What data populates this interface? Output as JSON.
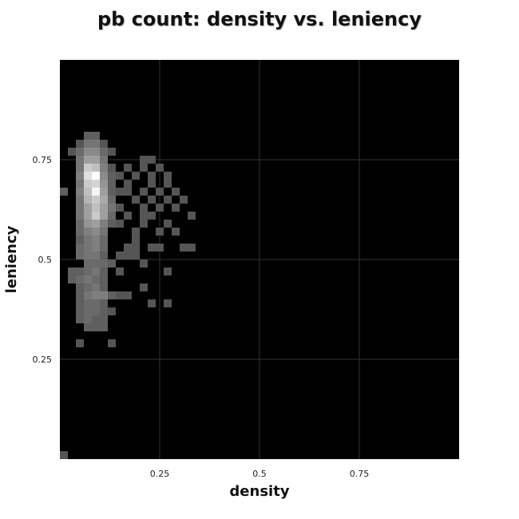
{
  "chart_data": {
    "type": "heatmap",
    "title": "pb count: density vs. leniency",
    "xlabel": "density",
    "ylabel": "leniency",
    "xlim": [
      0,
      1
    ],
    "ylim": [
      0,
      1
    ],
    "bin_size": 0.02,
    "x_ticks": [
      {
        "value": 0.25,
        "label": "0.25"
      },
      {
        "value": 0.5,
        "label": "0.5"
      },
      {
        "value": 0.75,
        "label": "0.75"
      }
    ],
    "y_ticks": [
      {
        "value": 0.25,
        "label": "0.25"
      },
      {
        "value": 0.5,
        "label": "0.5"
      },
      {
        "value": 0.75,
        "label": "0.75"
      }
    ],
    "grid": true,
    "legend": "none",
    "colors": {
      "background": "#000000",
      "low": "#2a2a2a",
      "high": "#ffffff",
      "grid": "#333333"
    },
    "cells": [
      {
        "x": 0.06,
        "y": 0.8,
        "v": 0.25
      },
      {
        "x": 0.08,
        "y": 0.8,
        "v": 0.25
      },
      {
        "x": 0.04,
        "y": 0.78,
        "v": 0.2
      },
      {
        "x": 0.06,
        "y": 0.78,
        "v": 0.35
      },
      {
        "x": 0.08,
        "y": 0.78,
        "v": 0.35
      },
      {
        "x": 0.1,
        "y": 0.78,
        "v": 0.2
      },
      {
        "x": 0.02,
        "y": 0.76,
        "v": 0.2
      },
      {
        "x": 0.04,
        "y": 0.76,
        "v": 0.3
      },
      {
        "x": 0.06,
        "y": 0.76,
        "v": 0.45
      },
      {
        "x": 0.08,
        "y": 0.76,
        "v": 0.45
      },
      {
        "x": 0.1,
        "y": 0.76,
        "v": 0.3
      },
      {
        "x": 0.12,
        "y": 0.76,
        "v": 0.2
      },
      {
        "x": 0.04,
        "y": 0.74,
        "v": 0.35
      },
      {
        "x": 0.06,
        "y": 0.74,
        "v": 0.55
      },
      {
        "x": 0.08,
        "y": 0.74,
        "v": 0.55
      },
      {
        "x": 0.1,
        "y": 0.74,
        "v": 0.35
      },
      {
        "x": 0.2,
        "y": 0.74,
        "v": 0.2
      },
      {
        "x": 0.22,
        "y": 0.74,
        "v": 0.2
      },
      {
        "x": 0.04,
        "y": 0.72,
        "v": 0.35
      },
      {
        "x": 0.06,
        "y": 0.72,
        "v": 0.75
      },
      {
        "x": 0.08,
        "y": 0.72,
        "v": 0.7
      },
      {
        "x": 0.1,
        "y": 0.72,
        "v": 0.4
      },
      {
        "x": 0.12,
        "y": 0.72,
        "v": 0.2
      },
      {
        "x": 0.16,
        "y": 0.72,
        "v": 0.2
      },
      {
        "x": 0.2,
        "y": 0.72,
        "v": 0.2
      },
      {
        "x": 0.24,
        "y": 0.72,
        "v": 0.2
      },
      {
        "x": 0.04,
        "y": 0.7,
        "v": 0.4
      },
      {
        "x": 0.06,
        "y": 0.7,
        "v": 0.85
      },
      {
        "x": 0.08,
        "y": 0.7,
        "v": 1.0
      },
      {
        "x": 0.1,
        "y": 0.7,
        "v": 0.45
      },
      {
        "x": 0.12,
        "y": 0.7,
        "v": 0.25
      },
      {
        "x": 0.14,
        "y": 0.7,
        "v": 0.2
      },
      {
        "x": 0.18,
        "y": 0.7,
        "v": 0.2
      },
      {
        "x": 0.22,
        "y": 0.7,
        "v": 0.2
      },
      {
        "x": 0.26,
        "y": 0.7,
        "v": 0.2
      },
      {
        "x": 0.04,
        "y": 0.68,
        "v": 0.35
      },
      {
        "x": 0.06,
        "y": 0.68,
        "v": 0.75
      },
      {
        "x": 0.08,
        "y": 0.68,
        "v": 0.8
      },
      {
        "x": 0.1,
        "y": 0.68,
        "v": 0.5
      },
      {
        "x": 0.12,
        "y": 0.68,
        "v": 0.25
      },
      {
        "x": 0.16,
        "y": 0.68,
        "v": 0.2
      },
      {
        "x": 0.22,
        "y": 0.68,
        "v": 0.2
      },
      {
        "x": 0.26,
        "y": 0.68,
        "v": 0.2
      },
      {
        "x": 0.0,
        "y": 0.66,
        "v": 0.25
      },
      {
        "x": 0.04,
        "y": 0.66,
        "v": 0.4
      },
      {
        "x": 0.06,
        "y": 0.66,
        "v": 0.7
      },
      {
        "x": 0.08,
        "y": 0.66,
        "v": 0.95
      },
      {
        "x": 0.1,
        "y": 0.66,
        "v": 0.55
      },
      {
        "x": 0.12,
        "y": 0.66,
        "v": 0.25
      },
      {
        "x": 0.14,
        "y": 0.66,
        "v": 0.2
      },
      {
        "x": 0.16,
        "y": 0.66,
        "v": 0.2
      },
      {
        "x": 0.2,
        "y": 0.66,
        "v": 0.2
      },
      {
        "x": 0.24,
        "y": 0.66,
        "v": 0.2
      },
      {
        "x": 0.28,
        "y": 0.66,
        "v": 0.2
      },
      {
        "x": 0.04,
        "y": 0.64,
        "v": 0.35
      },
      {
        "x": 0.06,
        "y": 0.64,
        "v": 0.65
      },
      {
        "x": 0.08,
        "y": 0.64,
        "v": 0.75
      },
      {
        "x": 0.1,
        "y": 0.64,
        "v": 0.6
      },
      {
        "x": 0.12,
        "y": 0.64,
        "v": 0.3
      },
      {
        "x": 0.18,
        "y": 0.64,
        "v": 0.2
      },
      {
        "x": 0.22,
        "y": 0.64,
        "v": 0.2
      },
      {
        "x": 0.26,
        "y": 0.64,
        "v": 0.2
      },
      {
        "x": 0.3,
        "y": 0.64,
        "v": 0.2
      },
      {
        "x": 0.04,
        "y": 0.62,
        "v": 0.35
      },
      {
        "x": 0.06,
        "y": 0.62,
        "v": 0.55
      },
      {
        "x": 0.08,
        "y": 0.62,
        "v": 0.7
      },
      {
        "x": 0.1,
        "y": 0.62,
        "v": 0.55
      },
      {
        "x": 0.12,
        "y": 0.62,
        "v": 0.35
      },
      {
        "x": 0.14,
        "y": 0.62,
        "v": 0.2
      },
      {
        "x": 0.2,
        "y": 0.62,
        "v": 0.2
      },
      {
        "x": 0.24,
        "y": 0.62,
        "v": 0.2
      },
      {
        "x": 0.28,
        "y": 0.62,
        "v": 0.2
      },
      {
        "x": 0.04,
        "y": 0.6,
        "v": 0.35
      },
      {
        "x": 0.06,
        "y": 0.6,
        "v": 0.55
      },
      {
        "x": 0.08,
        "y": 0.6,
        "v": 0.75
      },
      {
        "x": 0.1,
        "y": 0.6,
        "v": 0.55
      },
      {
        "x": 0.12,
        "y": 0.6,
        "v": 0.3
      },
      {
        "x": 0.16,
        "y": 0.6,
        "v": 0.2
      },
      {
        "x": 0.2,
        "y": 0.6,
        "v": 0.2
      },
      {
        "x": 0.22,
        "y": 0.6,
        "v": 0.2
      },
      {
        "x": 0.32,
        "y": 0.6,
        "v": 0.2
      },
      {
        "x": 0.04,
        "y": 0.58,
        "v": 0.3
      },
      {
        "x": 0.06,
        "y": 0.58,
        "v": 0.5
      },
      {
        "x": 0.08,
        "y": 0.58,
        "v": 0.55
      },
      {
        "x": 0.1,
        "y": 0.58,
        "v": 0.4
      },
      {
        "x": 0.12,
        "y": 0.58,
        "v": 0.25
      },
      {
        "x": 0.14,
        "y": 0.58,
        "v": 0.2
      },
      {
        "x": 0.2,
        "y": 0.58,
        "v": 0.2
      },
      {
        "x": 0.26,
        "y": 0.58,
        "v": 0.2
      },
      {
        "x": 0.04,
        "y": 0.56,
        "v": 0.3
      },
      {
        "x": 0.06,
        "y": 0.56,
        "v": 0.4
      },
      {
        "x": 0.08,
        "y": 0.56,
        "v": 0.45
      },
      {
        "x": 0.1,
        "y": 0.56,
        "v": 0.35
      },
      {
        "x": 0.18,
        "y": 0.56,
        "v": 0.2
      },
      {
        "x": 0.24,
        "y": 0.56,
        "v": 0.2
      },
      {
        "x": 0.28,
        "y": 0.56,
        "v": 0.2
      },
      {
        "x": 0.04,
        "y": 0.54,
        "v": 0.25
      },
      {
        "x": 0.06,
        "y": 0.54,
        "v": 0.35
      },
      {
        "x": 0.08,
        "y": 0.54,
        "v": 0.4
      },
      {
        "x": 0.1,
        "y": 0.54,
        "v": 0.3
      },
      {
        "x": 0.18,
        "y": 0.54,
        "v": 0.2
      },
      {
        "x": 0.04,
        "y": 0.52,
        "v": 0.3
      },
      {
        "x": 0.06,
        "y": 0.52,
        "v": 0.35
      },
      {
        "x": 0.08,
        "y": 0.52,
        "v": 0.4
      },
      {
        "x": 0.1,
        "y": 0.52,
        "v": 0.3
      },
      {
        "x": 0.16,
        "y": 0.52,
        "v": 0.2
      },
      {
        "x": 0.18,
        "y": 0.52,
        "v": 0.2
      },
      {
        "x": 0.22,
        "y": 0.52,
        "v": 0.2
      },
      {
        "x": 0.24,
        "y": 0.52,
        "v": 0.2
      },
      {
        "x": 0.3,
        "y": 0.52,
        "v": 0.2
      },
      {
        "x": 0.32,
        "y": 0.52,
        "v": 0.2
      },
      {
        "x": 0.04,
        "y": 0.5,
        "v": 0.3
      },
      {
        "x": 0.06,
        "y": 0.5,
        "v": 0.35
      },
      {
        "x": 0.08,
        "y": 0.5,
        "v": 0.35
      },
      {
        "x": 0.1,
        "y": 0.5,
        "v": 0.25
      },
      {
        "x": 0.14,
        "y": 0.5,
        "v": 0.2
      },
      {
        "x": 0.16,
        "y": 0.5,
        "v": 0.2
      },
      {
        "x": 0.18,
        "y": 0.5,
        "v": 0.2
      },
      {
        "x": 0.06,
        "y": 0.48,
        "v": 0.3
      },
      {
        "x": 0.08,
        "y": 0.48,
        "v": 0.3
      },
      {
        "x": 0.1,
        "y": 0.48,
        "v": 0.3
      },
      {
        "x": 0.12,
        "y": 0.48,
        "v": 0.25
      },
      {
        "x": 0.2,
        "y": 0.48,
        "v": 0.2
      },
      {
        "x": 0.02,
        "y": 0.46,
        "v": 0.25
      },
      {
        "x": 0.04,
        "y": 0.46,
        "v": 0.25
      },
      {
        "x": 0.06,
        "y": 0.46,
        "v": 0.3
      },
      {
        "x": 0.08,
        "y": 0.46,
        "v": 0.35
      },
      {
        "x": 0.1,
        "y": 0.46,
        "v": 0.25
      },
      {
        "x": 0.14,
        "y": 0.46,
        "v": 0.2
      },
      {
        "x": 0.26,
        "y": 0.46,
        "v": 0.2
      },
      {
        "x": 0.02,
        "y": 0.44,
        "v": 0.25
      },
      {
        "x": 0.04,
        "y": 0.44,
        "v": 0.3
      },
      {
        "x": 0.06,
        "y": 0.44,
        "v": 0.35
      },
      {
        "x": 0.08,
        "y": 0.44,
        "v": 0.3
      },
      {
        "x": 0.1,
        "y": 0.44,
        "v": 0.25
      },
      {
        "x": 0.04,
        "y": 0.42,
        "v": 0.25
      },
      {
        "x": 0.06,
        "y": 0.42,
        "v": 0.3
      },
      {
        "x": 0.08,
        "y": 0.42,
        "v": 0.35
      },
      {
        "x": 0.1,
        "y": 0.42,
        "v": 0.25
      },
      {
        "x": 0.2,
        "y": 0.42,
        "v": 0.2
      },
      {
        "x": 0.04,
        "y": 0.4,
        "v": 0.25
      },
      {
        "x": 0.06,
        "y": 0.4,
        "v": 0.35
      },
      {
        "x": 0.08,
        "y": 0.4,
        "v": 0.4
      },
      {
        "x": 0.1,
        "y": 0.4,
        "v": 0.4
      },
      {
        "x": 0.12,
        "y": 0.4,
        "v": 0.25
      },
      {
        "x": 0.14,
        "y": 0.4,
        "v": 0.2
      },
      {
        "x": 0.16,
        "y": 0.4,
        "v": 0.2
      },
      {
        "x": 0.04,
        "y": 0.38,
        "v": 0.25
      },
      {
        "x": 0.06,
        "y": 0.38,
        "v": 0.3
      },
      {
        "x": 0.08,
        "y": 0.38,
        "v": 0.3
      },
      {
        "x": 0.1,
        "y": 0.38,
        "v": 0.25
      },
      {
        "x": 0.22,
        "y": 0.38,
        "v": 0.2
      },
      {
        "x": 0.26,
        "y": 0.38,
        "v": 0.2
      },
      {
        "x": 0.04,
        "y": 0.36,
        "v": 0.25
      },
      {
        "x": 0.06,
        "y": 0.36,
        "v": 0.3
      },
      {
        "x": 0.08,
        "y": 0.36,
        "v": 0.3
      },
      {
        "x": 0.1,
        "y": 0.36,
        "v": 0.25
      },
      {
        "x": 0.12,
        "y": 0.36,
        "v": 0.2
      },
      {
        "x": 0.04,
        "y": 0.34,
        "v": 0.25
      },
      {
        "x": 0.06,
        "y": 0.34,
        "v": 0.3
      },
      {
        "x": 0.08,
        "y": 0.34,
        "v": 0.25
      },
      {
        "x": 0.1,
        "y": 0.34,
        "v": 0.25
      },
      {
        "x": 0.06,
        "y": 0.32,
        "v": 0.25
      },
      {
        "x": 0.08,
        "y": 0.32,
        "v": 0.25
      },
      {
        "x": 0.1,
        "y": 0.32,
        "v": 0.25
      },
      {
        "x": 0.04,
        "y": 0.28,
        "v": 0.2
      },
      {
        "x": 0.12,
        "y": 0.28,
        "v": 0.2
      },
      {
        "x": 0.0,
        "y": 0.0,
        "v": 0.2
      }
    ]
  }
}
